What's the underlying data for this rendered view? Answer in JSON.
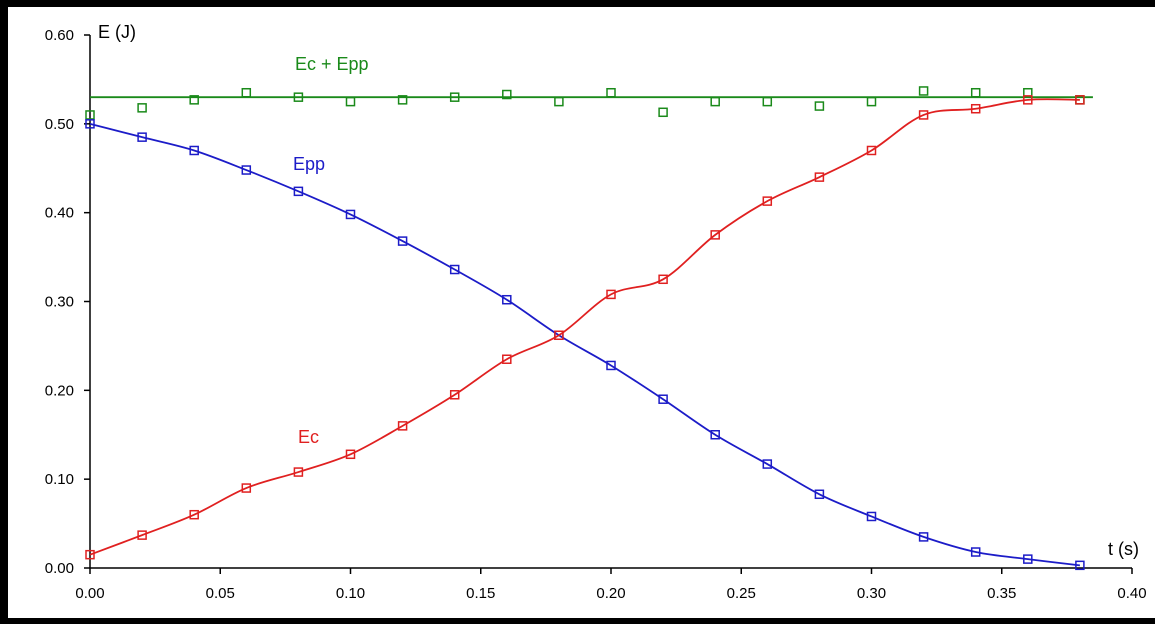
{
  "chart_data": {
    "type": "scatter",
    "xlabel": "t (s)",
    "ylabel": "E (J)",
    "xlim": [
      0,
      0.4
    ],
    "ylim": [
      0,
      0.6
    ],
    "x_ticks": [
      "0.00",
      "0.05",
      "0.10",
      "0.15",
      "0.20",
      "0.25",
      "0.30",
      "0.35",
      "0.40"
    ],
    "y_ticks": [
      "0.00",
      "0.10",
      "0.20",
      "0.30",
      "0.40",
      "0.50",
      "0.60"
    ],
    "grid": false,
    "series": [
      {
        "name": "Ec + Epp",
        "color": "#1a8a1a",
        "fit": "horizontal line",
        "fit_value": 0.53,
        "points": [
          [
            0.0,
            0.51
          ],
          [
            0.02,
            0.518
          ],
          [
            0.04,
            0.527
          ],
          [
            0.06,
            0.535
          ],
          [
            0.08,
            0.53
          ],
          [
            0.1,
            0.525
          ],
          [
            0.12,
            0.527
          ],
          [
            0.14,
            0.53
          ],
          [
            0.16,
            0.533
          ],
          [
            0.18,
            0.525
          ],
          [
            0.2,
            0.535
          ],
          [
            0.22,
            0.513
          ],
          [
            0.24,
            0.525
          ],
          [
            0.26,
            0.525
          ],
          [
            0.28,
            0.52
          ],
          [
            0.3,
            0.525
          ],
          [
            0.32,
            0.537
          ],
          [
            0.34,
            0.535
          ],
          [
            0.36,
            0.535
          ],
          [
            0.38,
            0.527
          ]
        ]
      },
      {
        "name": "Epp",
        "color": "#1c1cc8",
        "fit": "smooth curve",
        "points": [
          [
            0.0,
            0.5
          ],
          [
            0.02,
            0.485
          ],
          [
            0.04,
            0.47
          ],
          [
            0.06,
            0.448
          ],
          [
            0.08,
            0.424
          ],
          [
            0.1,
            0.398
          ],
          [
            0.12,
            0.368
          ],
          [
            0.14,
            0.336
          ],
          [
            0.16,
            0.302
          ],
          [
            0.18,
            0.262
          ],
          [
            0.2,
            0.228
          ],
          [
            0.22,
            0.19
          ],
          [
            0.24,
            0.15
          ],
          [
            0.26,
            0.117
          ],
          [
            0.28,
            0.083
          ],
          [
            0.3,
            0.058
          ],
          [
            0.32,
            0.035
          ],
          [
            0.34,
            0.018
          ],
          [
            0.36,
            0.01
          ],
          [
            0.38,
            0.003
          ]
        ]
      },
      {
        "name": "Ec",
        "color": "#e02020",
        "fit": "smooth curve",
        "points": [
          [
            0.0,
            0.015
          ],
          [
            0.02,
            0.037
          ],
          [
            0.04,
            0.06
          ],
          [
            0.06,
            0.09
          ],
          [
            0.08,
            0.108
          ],
          [
            0.1,
            0.128
          ],
          [
            0.12,
            0.16
          ],
          [
            0.14,
            0.195
          ],
          [
            0.16,
            0.235
          ],
          [
            0.18,
            0.262
          ],
          [
            0.2,
            0.308
          ],
          [
            0.22,
            0.325
          ],
          [
            0.24,
            0.375
          ],
          [
            0.26,
            0.413
          ],
          [
            0.28,
            0.44
          ],
          [
            0.3,
            0.47
          ],
          [
            0.32,
            0.51
          ],
          [
            0.34,
            0.517
          ],
          [
            0.36,
            0.527
          ],
          [
            0.38,
            0.527
          ]
        ]
      }
    ],
    "annotations": [
      "Ec + Epp",
      "Epp",
      "Ec"
    ]
  }
}
